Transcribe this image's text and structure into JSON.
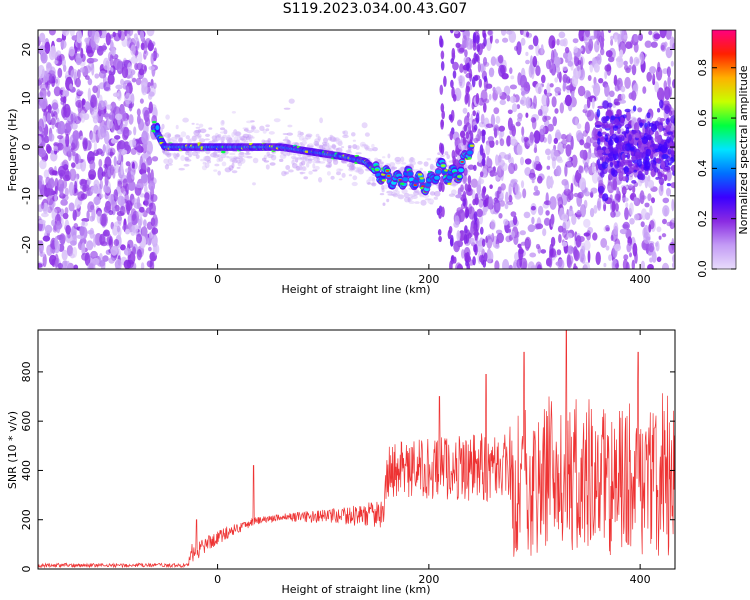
{
  "title": "S119.2023.034.00.43.G07",
  "chart_data": [
    {
      "type": "heatmap",
      "title": "S119.2023.034.00.43.G07",
      "xlabel": "Height of straight line (km)",
      "ylabel": "Frequency (Hz)",
      "xlim": [
        -170,
        433
      ],
      "ylim": [
        -25,
        24
      ],
      "xticks": [
        0,
        200,
        400
      ],
      "yticks": [
        -20,
        -10,
        0,
        10,
        20
      ],
      "colorbar": {
        "label": "Normalized spectral amplitude",
        "range": [
          0.0,
          0.95
        ],
        "ticks": [
          0.0,
          0.2,
          0.4,
          0.6,
          0.8
        ],
        "colormap": [
          "#e8dcfb",
          "#c39bf5",
          "#8a2be2",
          "#3a00ff",
          "#0070ff",
          "#00e5ff",
          "#00ff40",
          "#c8ff00",
          "#ffb000",
          "#ff2000",
          "#ff007f"
        ]
      },
      "ridge": {
        "x": [
          -60,
          -50,
          -30,
          0,
          30,
          60,
          90,
          120,
          140,
          150,
          160,
          170,
          180,
          190,
          200,
          210,
          220,
          230,
          240
        ],
        "y": [
          4,
          0,
          0,
          0,
          0,
          0,
          -1,
          -2,
          -3,
          -5,
          -6,
          -7,
          -6,
          -7,
          -8,
          -4,
          -6,
          -5,
          1
        ]
      }
    },
    {
      "type": "line",
      "xlabel": "Height of straight line (km)",
      "ylabel": "SNR (10 * v/v)",
      "xlim": [
        -170,
        433
      ],
      "ylim": [
        0,
        970
      ],
      "xticks": [
        0,
        200,
        400
      ],
      "yticks": [
        0,
        200,
        400,
        600,
        800
      ],
      "color": "#ee3333",
      "envelope": [
        {
          "x": -170,
          "y": 15,
          "spread": 8
        },
        {
          "x": -28,
          "y": 15,
          "spread": 8
        },
        {
          "x": -25,
          "y": 60,
          "spread": 40
        },
        {
          "x": 0,
          "y": 130,
          "spread": 30
        },
        {
          "x": 35,
          "y": 195,
          "spread": 15
        },
        {
          "x": 60,
          "y": 210,
          "spread": 15
        },
        {
          "x": 120,
          "y": 215,
          "spread": 35
        },
        {
          "x": 158,
          "y": 225,
          "spread": 60
        },
        {
          "x": 160,
          "y": 400,
          "spread": 110
        },
        {
          "x": 275,
          "y": 420,
          "spread": 150
        },
        {
          "x": 277,
          "y": 350,
          "spread": 300
        },
        {
          "x": 433,
          "y": 350,
          "spread": 300
        }
      ],
      "spikes": [
        {
          "x": -20,
          "y": 200
        },
        {
          "x": 34,
          "y": 420
        },
        {
          "x": 210,
          "y": 700
        },
        {
          "x": 254,
          "y": 790
        },
        {
          "x": 290,
          "y": 880
        },
        {
          "x": 330,
          "y": 970
        },
        {
          "x": 398,
          "y": 880
        }
      ]
    }
  ]
}
